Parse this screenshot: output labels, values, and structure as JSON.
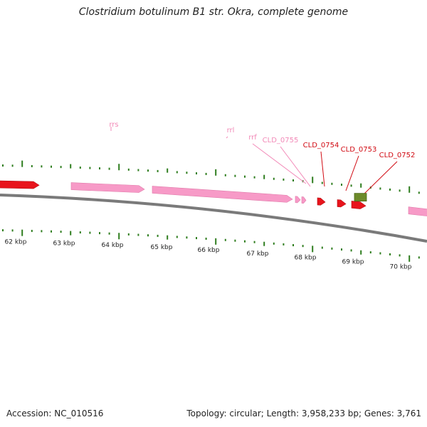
{
  "title": "Clostridium botulinum B1 str. Okra, complete genome",
  "footer": {
    "accession": "Accession: NC_010516",
    "summary": "Topology: circular; Length: 3,958,233 bp; Genes: 3,761"
  },
  "colors": {
    "cds": "#e8141c",
    "rna": "#f79ac7",
    "rna_label": "#f28ab8",
    "cds_label": "#d10a12",
    "other_feature": "#6d8a2a",
    "ticks": "#2e7d1e",
    "backbone": "#7a7a7a"
  },
  "scale": {
    "unit": "kbp",
    "labels": [
      "62 kbp",
      "63 kbp",
      "64 kbp",
      "65 kbp",
      "66 kbp",
      "67 kbp",
      "68 kbp",
      "69 kbp",
      "70 kbp"
    ]
  },
  "features": [
    {
      "type": "cds",
      "strand": "+"
    },
    {
      "type": "rna",
      "strand": "+",
      "label": "rrs"
    },
    {
      "type": "rna",
      "strand": "+",
      "label": "rrl"
    },
    {
      "type": "rna",
      "strand": "+",
      "label": "rrf"
    },
    {
      "type": "rna",
      "strand": "+",
      "label": "CLD_0755"
    },
    {
      "type": "cds",
      "strand": "+",
      "label": "CLD_0754"
    },
    {
      "type": "cds",
      "strand": "+",
      "label": "CLD_0753"
    },
    {
      "type": "cds",
      "strand": "+",
      "label": "CLD_0752"
    },
    {
      "type": "other",
      "strand": "+"
    },
    {
      "type": "rna",
      "strand": "+"
    }
  ]
}
